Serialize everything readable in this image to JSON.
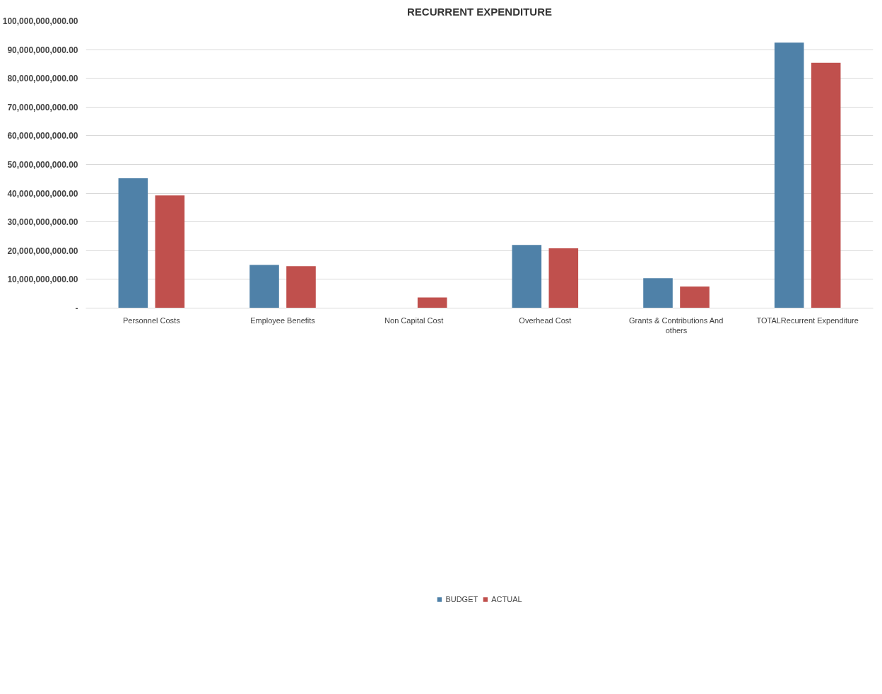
{
  "chart_data": {
    "type": "bar",
    "title": "RECURRENT EXPENDITURE",
    "categories": [
      "Personnel Costs",
      "Employee Benefits",
      "Non Capital Cost",
      "Overhead Cost",
      "Grants & Contributions And others",
      "TOTALRecurrent Expenditure"
    ],
    "series": [
      {
        "name": "BUDGET",
        "color": "#4f81a8",
        "values": [
          45200000000,
          15000000000,
          0,
          22000000000,
          10400000000,
          92400000000
        ]
      },
      {
        "name": "ACTUAL",
        "color": "#c0504d",
        "values": [
          39200000000,
          14600000000,
          3700000000,
          20800000000,
          7500000000,
          85400000000
        ]
      }
    ],
    "ylim": [
      0,
      100000000000
    ],
    "yticks": [
      {
        "value": 0,
        "label": "-"
      },
      {
        "value": 10000000000,
        "label": "10,000,000,000.00"
      },
      {
        "value": 20000000000,
        "label": "20,000,000,000.00"
      },
      {
        "value": 30000000000,
        "label": "30,000,000,000.00"
      },
      {
        "value": 40000000000,
        "label": "40,000,000,000.00"
      },
      {
        "value": 50000000000,
        "label": "50,000,000,000.00"
      },
      {
        "value": 60000000000,
        "label": "60,000,000,000.00"
      },
      {
        "value": 70000000000,
        "label": "70,000,000,000.00"
      },
      {
        "value": 80000000000,
        "label": "80,000,000,000.00"
      },
      {
        "value": 90000000000,
        "label": "90,000,000,000.00"
      },
      {
        "value": 100000000000,
        "label": "100,000,000,000.00"
      }
    ],
    "grid": "y",
    "legend": "bottom"
  }
}
